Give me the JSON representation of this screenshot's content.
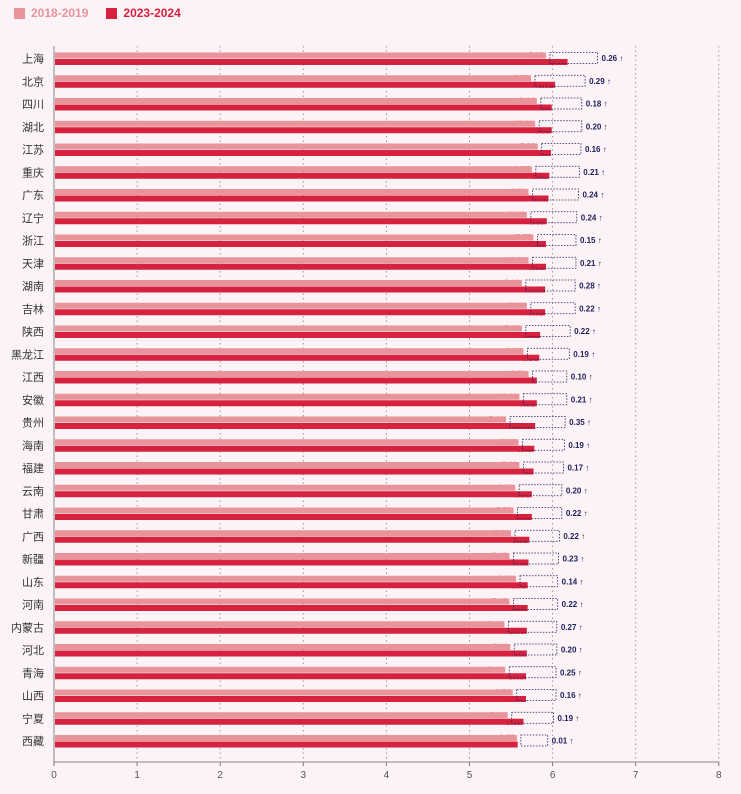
{
  "colors": {
    "s2018": "#e8949a",
    "s2023": "#d6213f",
    "delta": "#1e1e5a",
    "bg": "#fbf3f6"
  },
  "arrow": "↑",
  "chart_data": {
    "type": "bar",
    "orientation": "horizontal",
    "title": "",
    "xlabel": "",
    "ylabel": "",
    "xlim": [
      0,
      8
    ],
    "xticks": [
      0,
      1,
      2,
      3,
      4,
      5,
      6,
      7,
      8
    ],
    "grid": "vertical dotted",
    "legend_position": "top-left",
    "categories": [
      "上海",
      "北京",
      "四川",
      "湖北",
      "江苏",
      "重庆",
      "广东",
      "辽宁",
      "浙江",
      "天津",
      "湖南",
      "吉林",
      "陕西",
      "黑龙江",
      "江西",
      "安徽",
      "贵州",
      "海南",
      "福建",
      "云南",
      "甘肃",
      "广西",
      "新疆",
      "山东",
      "河南",
      "内蒙古",
      "河北",
      "青海",
      "山西",
      "宁夏",
      "西藏"
    ],
    "series": [
      {
        "name": "2018-2019",
        "values": [
          5.92,
          5.74,
          5.81,
          5.79,
          5.82,
          5.75,
          5.71,
          5.69,
          5.77,
          5.71,
          5.63,
          5.69,
          5.63,
          5.65,
          5.71,
          5.6,
          5.44,
          5.59,
          5.6,
          5.55,
          5.53,
          5.5,
          5.48,
          5.56,
          5.48,
          5.42,
          5.49,
          5.43,
          5.52,
          5.46,
          5.57
        ]
      },
      {
        "name": "2023-2024",
        "values": [
          6.18,
          6.03,
          5.99,
          5.99,
          5.98,
          5.96,
          5.95,
          5.93,
          5.92,
          5.92,
          5.91,
          5.91,
          5.85,
          5.84,
          5.81,
          5.81,
          5.79,
          5.78,
          5.77,
          5.75,
          5.75,
          5.72,
          5.71,
          5.7,
          5.7,
          5.69,
          5.69,
          5.68,
          5.68,
          5.65,
          5.58
        ]
      }
    ],
    "differences": [
      "0.26",
      "0.29",
      "0.18",
      "0.20",
      "0.16",
      "0.21",
      "0.24",
      "0.24",
      "0.15",
      "0.21",
      "0.28",
      "0.22",
      "0.22",
      "0.19",
      "0.10",
      "0.21",
      "0.35",
      "0.19",
      "0.17",
      "0.20",
      "0.22",
      "0.22",
      "0.23",
      "0.14",
      "0.22",
      "0.27",
      "0.20",
      "0.25",
      "0.16",
      "0.19",
      "0.01"
    ]
  }
}
